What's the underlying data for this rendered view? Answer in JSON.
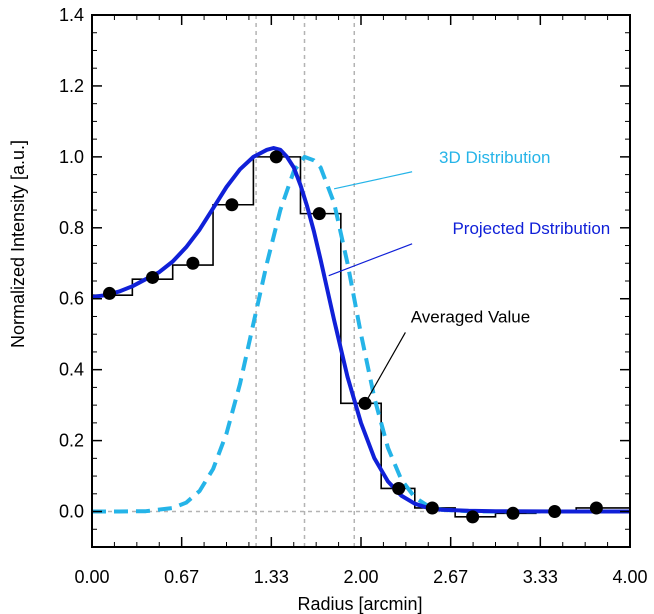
{
  "chart_data": {
    "type": "line",
    "xlabel": "Radius [arcmin]",
    "ylabel": "Normalized Intensity [a.u.]",
    "xlim": [
      0,
      4
    ],
    "ylim": [
      -0.1,
      1.4
    ],
    "x_ticks": [
      {
        "value": 0,
        "label": "0.00"
      },
      {
        "value": 0.6667,
        "label": "0.67"
      },
      {
        "value": 1.3333,
        "label": "1.33"
      },
      {
        "value": 2.0,
        "label": "2.00"
      },
      {
        "value": 2.6667,
        "label": "2.67"
      },
      {
        "value": 3.3333,
        "label": "3.33"
      },
      {
        "value": 4.0,
        "label": "4.00"
      }
    ],
    "y_ticks": [
      {
        "value": 0.0,
        "label": "0.0"
      },
      {
        "value": 0.2,
        "label": "0.2"
      },
      {
        "value": 0.4,
        "label": "0.4"
      },
      {
        "value": 0.6,
        "label": "0.6"
      },
      {
        "value": 0.8,
        "label": "0.8"
      },
      {
        "value": 1.0,
        "label": "1.0"
      },
      {
        "value": 1.2,
        "label": "1.2"
      },
      {
        "value": 1.4,
        "label": "1.4"
      }
    ],
    "reference_lines": {
      "horizontal_y": [
        0.0
      ],
      "vertical_x": [
        1.22,
        1.58,
        1.95
      ]
    },
    "series": [
      {
        "name": "3D Distribution",
        "style": "dashed",
        "color": "#25b4e8",
        "x": [
          0,
          0.2,
          0.4,
          0.6,
          0.7,
          0.8,
          0.9,
          1.0,
          1.1,
          1.2,
          1.3,
          1.4,
          1.5,
          1.58,
          1.65,
          1.7,
          1.8,
          1.9,
          2.0,
          2.1,
          2.2,
          2.3,
          2.4,
          2.5,
          2.6,
          2.8,
          3.0,
          3.5,
          4.0
        ],
        "y": [
          0,
          0,
          0.001,
          0.01,
          0.025,
          0.058,
          0.12,
          0.22,
          0.36,
          0.53,
          0.7,
          0.85,
          0.96,
          1.0,
          0.99,
          0.97,
          0.87,
          0.7,
          0.5,
          0.32,
          0.18,
          0.09,
          0.04,
          0.015,
          0.005,
          0.001,
          0,
          0,
          0
        ]
      },
      {
        "name": "Projected Dstribution",
        "style": "solid",
        "color": "#1020d8",
        "x": [
          0,
          0.1,
          0.2,
          0.3,
          0.4,
          0.5,
          0.6,
          0.7,
          0.8,
          0.9,
          1.0,
          1.1,
          1.2,
          1.3,
          1.35,
          1.4,
          1.45,
          1.5,
          1.55,
          1.6,
          1.65,
          1.7,
          1.8,
          1.9,
          2.0,
          2.1,
          2.2,
          2.3,
          2.4,
          2.5,
          2.6,
          2.8,
          3.0,
          3.5,
          4.0
        ],
        "y": [
          0.605,
          0.61,
          0.62,
          0.635,
          0.655,
          0.675,
          0.705,
          0.745,
          0.795,
          0.855,
          0.915,
          0.965,
          1.0,
          1.02,
          1.025,
          1.02,
          1.0,
          0.97,
          0.92,
          0.86,
          0.79,
          0.71,
          0.54,
          0.38,
          0.25,
          0.15,
          0.085,
          0.045,
          0.022,
          0.01,
          0.005,
          0.002,
          0.001,
          0,
          0
        ]
      },
      {
        "name": "",
        "style": "step",
        "color": "#000000",
        "bins": [
          {
            "x0": 0.0,
            "x1": 0.3,
            "y": 0.61
          },
          {
            "x0": 0.3,
            "x1": 0.6,
            "y": 0.655
          },
          {
            "x0": 0.6,
            "x1": 0.9,
            "y": 0.695
          },
          {
            "x0": 0.9,
            "x1": 1.2,
            "y": 0.865
          },
          {
            "x0": 1.2,
            "x1": 1.55,
            "y": 1.0
          },
          {
            "x0": 1.55,
            "x1": 1.85,
            "y": 0.84
          },
          {
            "x0": 1.85,
            "x1": 2.15,
            "y": 0.305
          },
          {
            "x0": 2.15,
            "x1": 2.4,
            "y": 0.065
          },
          {
            "x0": 2.4,
            "x1": 2.7,
            "y": 0.01
          },
          {
            "x0": 2.7,
            "x1": 3.0,
            "y": -0.015
          },
          {
            "x0": 3.0,
            "x1": 3.3,
            "y": -0.005
          },
          {
            "x0": 3.3,
            "x1": 3.6,
            "y": 0.0
          },
          {
            "x0": 3.6,
            "x1": 4.0,
            "y": 0.01
          }
        ]
      },
      {
        "name": "Averaged Value",
        "style": "points",
        "color": "#000000",
        "x": [
          0.13,
          0.45,
          0.75,
          1.04,
          1.37,
          1.69,
          2.03,
          2.28,
          2.53,
          2.83,
          3.13,
          3.44,
          3.75
        ],
        "y": [
          0.615,
          0.66,
          0.7,
          0.865,
          1.0,
          0.84,
          0.305,
          0.065,
          0.01,
          -0.015,
          -0.005,
          0.0,
          0.01
        ]
      }
    ],
    "annotations": [
      {
        "text": "3D Distribution",
        "color": "#25b4e8",
        "label_x": 2.58,
        "label_y": 1.0,
        "line_from": [
          2.38,
          0.958
        ],
        "line_to": [
          1.8,
          0.91
        ]
      },
      {
        "text": "Projected Dstribution",
        "color": "#1020d8",
        "label_x": 2.68,
        "label_y": 0.8,
        "line_from": [
          2.38,
          0.755
        ],
        "line_to": [
          1.76,
          0.665
        ]
      },
      {
        "text": "Averaged Value",
        "color": "#000000",
        "label_x": 2.37,
        "label_y": 0.55,
        "line_from": [
          2.33,
          0.505
        ],
        "line_to": [
          2.03,
          0.305
        ]
      }
    ]
  }
}
